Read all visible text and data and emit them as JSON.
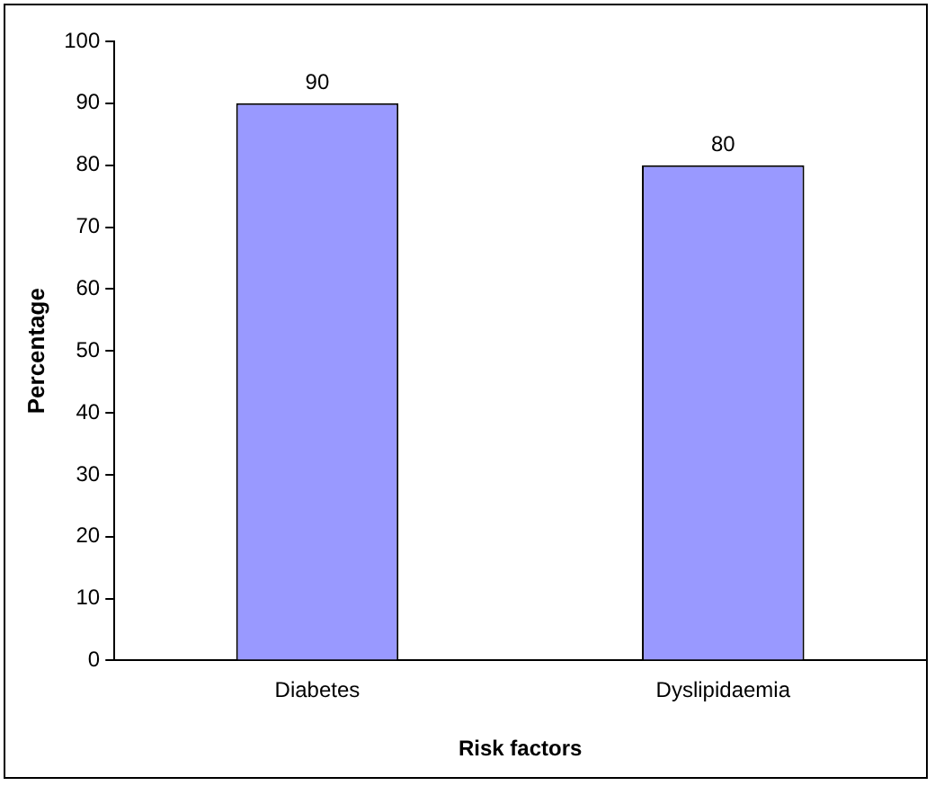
{
  "chart_data": {
    "type": "bar",
    "xlabel": "Risk factors",
    "ylabel": "Percentage",
    "categories": [
      "Diabetes",
      "Dyslipidaemia"
    ],
    "values": [
      90,
      80
    ],
    "color": "#9999ff",
    "ylim": [
      0,
      100
    ],
    "yticks": [
      0,
      10,
      20,
      30,
      40,
      50,
      60,
      70,
      80,
      90,
      100
    ],
    "grid": false,
    "legend": false,
    "data_labels": true
  }
}
